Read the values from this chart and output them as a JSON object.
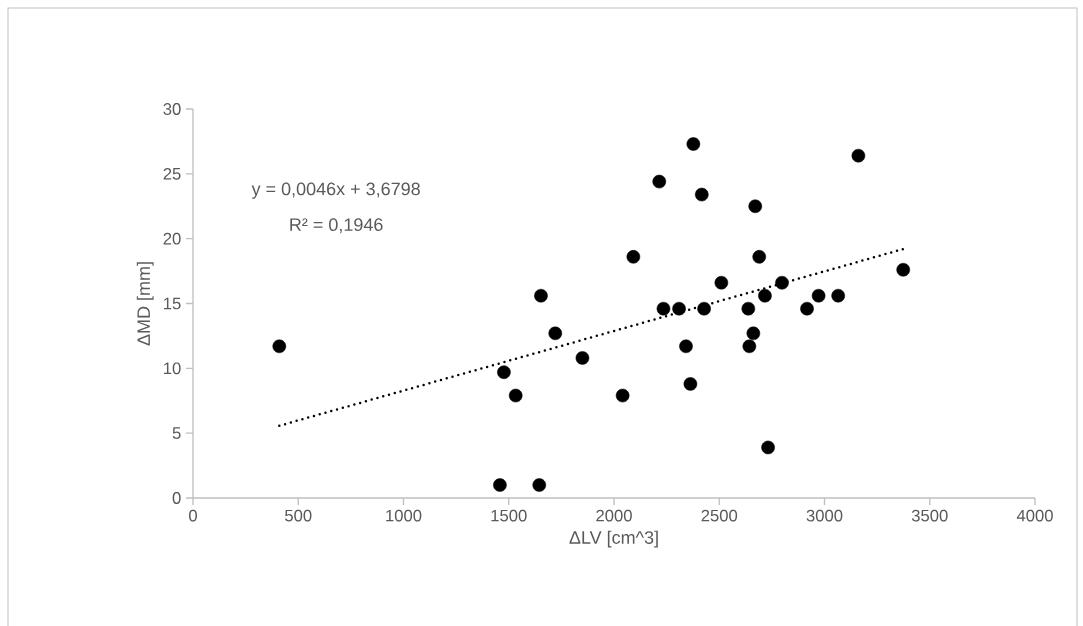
{
  "chart_data": {
    "type": "scatter",
    "xlabel": "ΔLV [cm^3]",
    "ylabel": "ΔMD [mm]",
    "xlim": [
      0,
      4000
    ],
    "xticks": [
      0,
      500,
      1000,
      1500,
      2000,
      2500,
      3000,
      3500,
      4000
    ],
    "ylim": [
      0,
      30
    ],
    "yticks": [
      0,
      5,
      10,
      15,
      20,
      25,
      30
    ],
    "grid": false,
    "annotations": [
      "y = 0,0046x + 3,6798",
      "R² = 0,1946"
    ],
    "series": [
      {
        "color": "#000000",
        "marker": "circle",
        "x": [
          410,
          1477,
          1533,
          1458,
          1645,
          1653,
          1721,
          1850,
          2041,
          2092,
          2215,
          2235,
          2309,
          2342,
          2363,
          2377,
          2417,
          2428,
          2510,
          2638,
          2643,
          2662,
          2671,
          2690,
          2717,
          2732,
          2798,
          2917,
          2972,
          3065,
          3161,
          3374
        ],
        "values": [
          11.7,
          9.7,
          7.9,
          1.0,
          1.0,
          15.6,
          12.7,
          10.8,
          7.9,
          18.6,
          24.4,
          14.6,
          14.6,
          11.7,
          8.8,
          27.3,
          23.4,
          14.6,
          16.6,
          14.6,
          11.7,
          12.7,
          22.5,
          18.6,
          15.6,
          3.9,
          16.6,
          14.6,
          15.6,
          15.6,
          26.4,
          17.6
        ]
      },
      {
        "type": "line",
        "color": "#000000",
        "line_style": "dotted",
        "marker": "none",
        "x": [
          410,
          3374
        ],
        "values": [
          5.57,
          19.2
        ]
      }
    ]
  }
}
